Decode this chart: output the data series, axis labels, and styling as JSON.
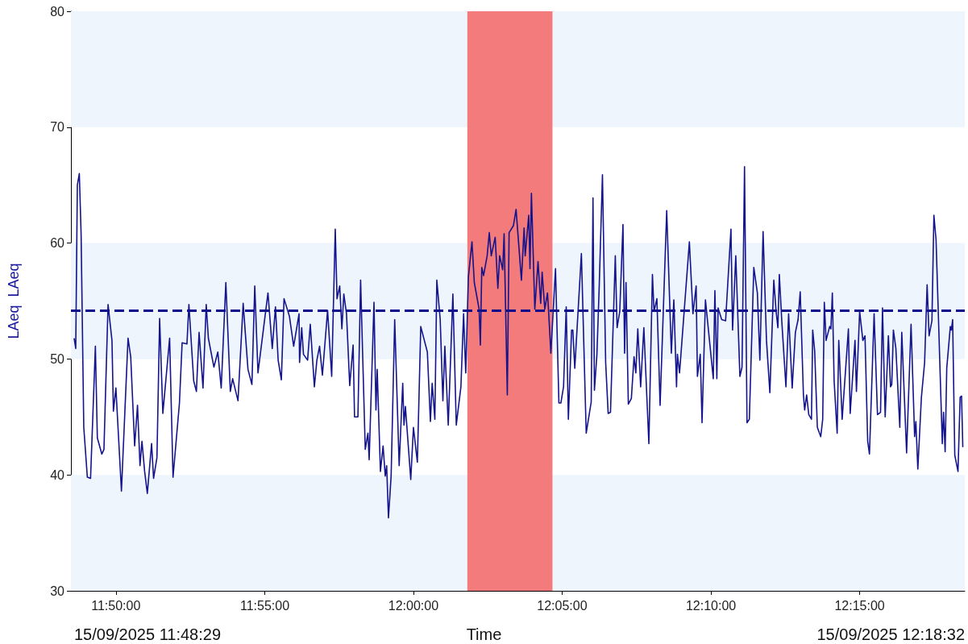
{
  "chart_data": {
    "type": "line",
    "xlabel": "Time",
    "ylabel": "LAeq  LAeq",
    "annotations": [
      "15/09/2025 11:48:29",
      "15/09/2025 12:18:32"
    ],
    "xlim": [
      11.8081,
      12.3089
    ],
    "xticks": [
      {
        "value": 11.8333,
        "label": "11:50:00"
      },
      {
        "value": 11.9167,
        "label": "11:55:00"
      },
      {
        "value": 12,
        "label": "12:00:00"
      },
      {
        "value": 12.0833,
        "label": "12:05:00"
      },
      {
        "value": 12.1667,
        "label": "12:10:00"
      },
      {
        "value": 12.25,
        "label": "12:15:00"
      }
    ],
    "ylim": [
      30,
      80
    ],
    "yticks": [
      30,
      40,
      50,
      60,
      70,
      80
    ],
    "grid": false,
    "marker": "none",
    "line_style": "solid",
    "bands": [
      {
        "axis": "y",
        "from": 30,
        "to": 40,
        "color": "#eef5fd"
      },
      {
        "axis": "y",
        "from": 50,
        "to": 60,
        "color": "#eef5fd"
      },
      {
        "axis": "y",
        "from": 70,
        "to": 80,
        "color": "#eef5fd"
      },
      {
        "axis": "x",
        "from": 12.0302,
        "to": 12.0779,
        "color": "#f47b7b"
      }
    ],
    "ref_lines": [
      {
        "axis": "y",
        "value": 54.2,
        "color": "#0a0a8a",
        "line_style": "dashed"
      }
    ],
    "series": [
      {
        "color": "#14148c",
        "x": [
          11.8099,
          11.8108,
          11.8117,
          11.8128,
          11.8138,
          11.8153,
          11.8173,
          11.8191,
          11.8218,
          11.8229,
          11.8254,
          11.8266,
          11.8289,
          11.8311,
          11.8319,
          11.8333,
          11.8364,
          11.8401,
          11.8416,
          11.8438,
          11.8454,
          11.8468,
          11.8479,
          11.8494,
          11.8509,
          11.8533,
          11.8544,
          11.8563,
          11.8578,
          11.8596,
          11.8634,
          11.8653,
          11.8689,
          11.8704,
          11.8731,
          11.8742,
          11.8769,
          11.8784,
          11.8799,
          11.8821,
          11.8839,
          11.8851,
          11.8882,
          11.8904,
          11.8923,
          11.8949,
          11.8974,
          11.8987,
          11.9017,
          11.9046,
          11.9073,
          11.9095,
          11.9111,
          11.9129,
          11.9159,
          11.9185,
          11.9209,
          11.9227,
          11.9242,
          11.926,
          11.9275,
          11.9305,
          11.9329,
          11.9359,
          11.9362,
          11.9374,
          11.9384,
          11.9407,
          11.9422,
          11.9445,
          11.9459,
          11.9474,
          11.949,
          11.9519,
          11.9542,
          11.9562,
          11.9572,
          11.9587,
          11.9599,
          11.961,
          11.9625,
          11.9643,
          11.9662,
          11.967,
          11.9689,
          11.9704,
          11.973,
          11.9745,
          11.9752,
          11.9779,
          11.979,
          11.9797,
          11.9815,
          11.983,
          11.9842,
          11.985,
          11.986,
          11.9875,
          11.9895,
          11.992,
          11.994,
          11.9947,
          11.9955,
          11.9985,
          12.0,
          12.0022,
          12.0041,
          12.0078,
          12.0095,
          12.0105,
          12.012,
          12.0131,
          12.015,
          12.0165,
          12.0176,
          12.0195,
          12.0221,
          12.024,
          12.0266,
          12.0281,
          12.0293,
          12.0308,
          12.0328,
          12.0341,
          12.0368,
          12.0375,
          12.0383,
          12.0393,
          12.0413,
          12.0425,
          12.0436,
          12.0458,
          12.0473,
          12.0483,
          12.05,
          12.0508,
          12.0526,
          12.0536,
          12.056,
          12.0575,
          12.0605,
          12.062,
          12.0626,
          12.0646,
          12.0653,
          12.0661,
          12.068,
          12.0698,
          12.0713,
          12.0721,
          12.0736,
          12.0751,
          12.0758,
          12.077,
          12.0796,
          12.0815,
          12.0826,
          12.0841,
          12.0856,
          12.0868,
          12.0886,
          12.0893,
          12.0904,
          12.0941,
          12.0968,
          12.0996,
          12.1006,
          12.1014,
          12.1028,
          12.1041,
          12.1059,
          12.1077,
          12.1091,
          12.1104,
          12.1131,
          12.1141,
          12.1156,
          12.1174,
          12.1183,
          12.1191,
          12.1204,
          12.1221,
          12.1236,
          12.1246,
          12.1257,
          12.1273,
          12.1291,
          12.1319,
          12.1339,
          12.1348,
          12.1364,
          12.1382,
          12.1419,
          12.1445,
          12.1459,
          12.1474,
          12.1479,
          12.1491,
          12.1546,
          12.1566,
          12.1584,
          12.1591,
          12.1607,
          12.1617,
          12.1636,
          12.168,
          12.1689,
          12.17,
          12.1707,
          12.1727,
          12.1749,
          12.1779,
          12.1788,
          12.1806,
          12.1829,
          12.1841,
          12.1855,
          12.1869,
          12.1882,
          12.1907,
          12.1927,
          12.1941,
          12.1959,
          12.1978,
          12.1997,
          12.2019,
          12.2032,
          12.2042,
          12.205,
          12.2064,
          12.2087,
          12.2102,
          12.2122,
          12.214,
          12.2155,
          12.2167,
          12.2185,
          12.2192,
          12.2203,
          12.2215,
          12.223,
          12.2237,
          12.2248,
          12.2263,
          12.2282,
          12.2293,
          12.2302,
          12.2312,
          12.2332,
          12.2339,
          12.2347,
          12.2357,
          12.2374,
          12.2383,
          12.2402,
          12.2437,
          12.2447,
          12.2474,
          12.2482,
          12.25,
          12.2518,
          12.253,
          12.2545,
          12.2555,
          12.2581,
          12.26,
          12.2617,
          12.2628,
          12.2643,
          12.2661,
          12.2673,
          12.268,
          12.2689,
          12.2703,
          12.2725,
          12.2736,
          12.2763,
          12.2788,
          12.2808,
          12.2815,
          12.2826,
          12.2846,
          12.2864,
          12.2878,
          12.2889,
          12.2905,
          12.2916,
          12.2928,
          12.294,
          12.2963,
          12.297,
          12.2979,
          12.2988,
          12.3008,
          12.3014,
          12.3021,
          12.3033,
          12.3051,
          12.3063,
          12.3071,
          12.3078
        ],
        "values": [
          51.8,
          50.9,
          65.0,
          66.0,
          60.8,
          44.1,
          39.8,
          39.7,
          51.1,
          43.2,
          41.8,
          42.2,
          54.7,
          51.6,
          45.5,
          47.5,
          38.6,
          51.8,
          50.2,
          42.5,
          46.0,
          40.8,
          42.9,
          40.3,
          38.4,
          42.7,
          39.7,
          41.5,
          53.5,
          45.3,
          51.8,
          39.8,
          46.2,
          51.4,
          51.3,
          54.7,
          48.1,
          47.2,
          52.3,
          47.5,
          54.7,
          51.8,
          49.3,
          50.6,
          47.5,
          56.6,
          47.2,
          48.3,
          46.4,
          54.8,
          49.1,
          47.8,
          56.3,
          48.8,
          52.5,
          55.7,
          50.9,
          54.5,
          49.9,
          48.2,
          55.2,
          53.7,
          51.1,
          53.9,
          49.7,
          52.7,
          50.4,
          49.9,
          53.0,
          47.6,
          49.9,
          51.1,
          48.6,
          54.2,
          48.5,
          61.2,
          55.2,
          56.3,
          52.6,
          55.6,
          53.9,
          47.7,
          51.2,
          45.0,
          45.0,
          56.8,
          42.2,
          43.6,
          41.3,
          54.9,
          45.6,
          49.1,
          40.3,
          42.5,
          39.9,
          40.8,
          36.3,
          39.9,
          53.4,
          40.8,
          47.9,
          44.3,
          45.9,
          39.6,
          44.1,
          41.1,
          52.8,
          50.6,
          44.6,
          47.9,
          44.8,
          56.8,
          53.4,
          46.4,
          51.1,
          44.3,
          55.6,
          44.3,
          47.6,
          53.9,
          48.8,
          57.1,
          60.1,
          56.6,
          54.3,
          51.2,
          57.9,
          57.2,
          58.9,
          60.9,
          58.9,
          60.5,
          56.1,
          58.9,
          57.7,
          60.8,
          46.9,
          60.9,
          61.5,
          62.9,
          56.8,
          61.3,
          58.9,
          62.4,
          57.8,
          64.3,
          54.3,
          58.4,
          54.8,
          57.5,
          54.3,
          55.7,
          53.9,
          50.5,
          57.8,
          46.2,
          46.2,
          47.6,
          54.5,
          44.8,
          52.5,
          52.5,
          49.2,
          59.1,
          43.6,
          46.3,
          63.9,
          47.3,
          50.4,
          56.3,
          65.9,
          49.7,
          45.3,
          45.4,
          58.9,
          52.7,
          54.1,
          61.6,
          50.5,
          56.6,
          46.1,
          46.6,
          50.2,
          48.8,
          52.6,
          47.6,
          52.7,
          42.7,
          57.3,
          54.1,
          55.2,
          46.0,
          62.8,
          50.5,
          55.1,
          47.6,
          50.4,
          48.8,
          60.1,
          53.9,
          56.3,
          48.5,
          50.4,
          44.5,
          55.1,
          48.3,
          55.9,
          48.3,
          54.4,
          53.4,
          53.3,
          61.2,
          52.5,
          58.9,
          48.5,
          49.3,
          66.6,
          44.5,
          44.8,
          57.9,
          55.7,
          49.9,
          61.0,
          51.6,
          47.1,
          56.8,
          54.1,
          52.7,
          57.3,
          53.2,
          47.6,
          53.9,
          47.5,
          52.3,
          53.4,
          55.8,
          46.9,
          45.6,
          46.9,
          45.2,
          44.8,
          52.5,
          50.7,
          44.1,
          43.3,
          44.8,
          54.9,
          51.6,
          52.8,
          52.6,
          55.7,
          48.1,
          43.6,
          51.6,
          44.8,
          52.6,
          45.3,
          51.6,
          47.2,
          54.1,
          51.6,
          52.0,
          42.9,
          41.8,
          53.9,
          45.2,
          45.4,
          54.4,
          45.0,
          52.0,
          47.6,
          47.8,
          52.5,
          50.9,
          44.1,
          52.3,
          41.9,
          53.0,
          43.3,
          44.6,
          40.5,
          46.7,
          49.7,
          56.4,
          52.0,
          53.3,
          62.4,
          60.3,
          54.3,
          42.7,
          45.4,
          42.0,
          49.2,
          52.8,
          52.5,
          53.4,
          41.7,
          40.3,
          46.7,
          46.8,
          42.4
        ]
      }
    ]
  }
}
